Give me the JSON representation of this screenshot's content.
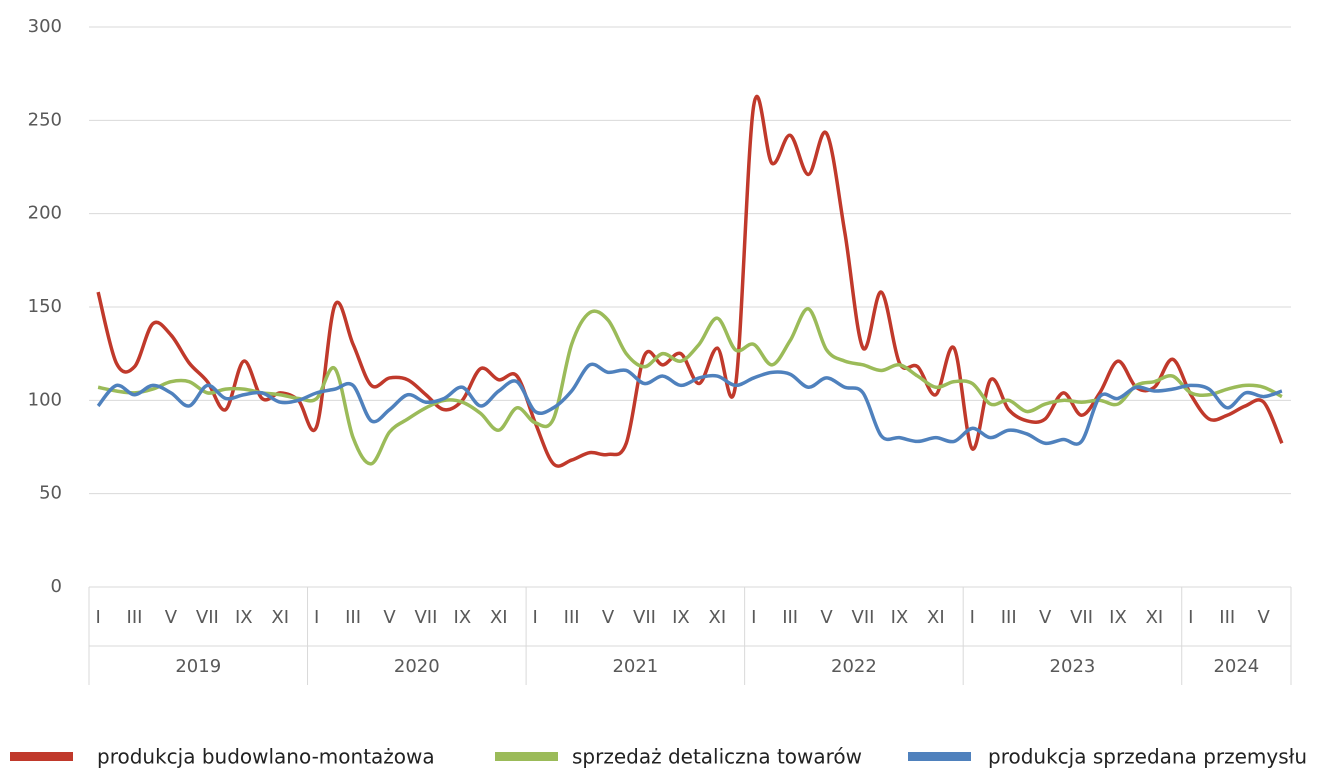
{
  "chart_data": {
    "type": "line",
    "categories": [
      "I",
      null,
      "III",
      null,
      "V",
      null,
      "VII",
      null,
      "IX",
      null,
      "XI",
      null,
      "I",
      null,
      "III",
      null,
      "V",
      null,
      "VII",
      null,
      "IX",
      null,
      "XI",
      null,
      "I",
      null,
      "III",
      null,
      "V",
      null,
      "VII",
      null,
      "IX",
      null,
      "XI",
      null,
      "I",
      null,
      "III",
      null,
      "V",
      null,
      "VII",
      null,
      "IX",
      null,
      "XI",
      null,
      "I",
      null,
      "III",
      null,
      "V",
      null,
      "VII",
      null,
      "IX",
      null,
      "XI",
      null,
      "I",
      null,
      "III",
      null,
      "V",
      null
    ],
    "years": [
      "2019",
      "2020",
      "2021",
      "2022",
      "2023",
      "2024"
    ],
    "series": [
      {
        "name": "produkcja budowlano-montażowa",
        "color": "#c0392b",
        "values": [
          158,
          120,
          118,
          141,
          135,
          120,
          110,
          95,
          121,
          101,
          104,
          100,
          86,
          151,
          130,
          108,
          112,
          111,
          103,
          95,
          100,
          117,
          111,
          113,
          88,
          66,
          68,
          72,
          71,
          77,
          124,
          119,
          125,
          109,
          128,
          108,
          258,
          227,
          242,
          221,
          243,
          190,
          128,
          158,
          120,
          118,
          103,
          128,
          74,
          111,
          95,
          89,
          90,
          104,
          92,
          104,
          121,
          107,
          107,
          122,
          103,
          90,
          92,
          97,
          99,
          77
        ]
      },
      {
        "name": "sprzedaż detaliczna towarów",
        "color": "#9bbb59",
        "values": [
          107,
          105,
          104,
          106,
          110,
          110,
          104,
          106,
          106,
          104,
          103,
          101,
          101,
          117,
          80,
          66,
          83,
          90,
          96,
          100,
          99,
          93,
          84,
          96,
          88,
          90,
          130,
          147,
          143,
          125,
          118,
          125,
          121,
          130,
          144,
          127,
          130,
          119,
          132,
          149,
          127,
          121,
          119,
          116,
          119,
          113,
          107,
          110,
          109,
          98,
          100,
          94,
          98,
          100,
          99,
          100,
          98,
          108,
          110,
          113,
          104,
          103,
          106,
          108,
          107,
          102
        ]
      },
      {
        "name": "produkcja sprzedana przemysłu",
        "color": "#4f81bd",
        "values": [
          97,
          108,
          103,
          108,
          104,
          97,
          108,
          101,
          103,
          104,
          99,
          100,
          104,
          106,
          108,
          89,
          95,
          103,
          99,
          101,
          107,
          97,
          105,
          110,
          94,
          96,
          105,
          119,
          115,
          116,
          109,
          113,
          108,
          112,
          113,
          108,
          112,
          115,
          114,
          107,
          112,
          107,
          104,
          81,
          80,
          78,
          80,
          78,
          85,
          80,
          84,
          82,
          77,
          79,
          78,
          102,
          101,
          107,
          105,
          106,
          108,
          106,
          96,
          104,
          102,
          105
        ]
      }
    ],
    "ylim": [
      0,
      300
    ],
    "yticks": [
      0,
      50,
      100,
      150,
      200,
      250,
      300
    ],
    "grid": true
  }
}
